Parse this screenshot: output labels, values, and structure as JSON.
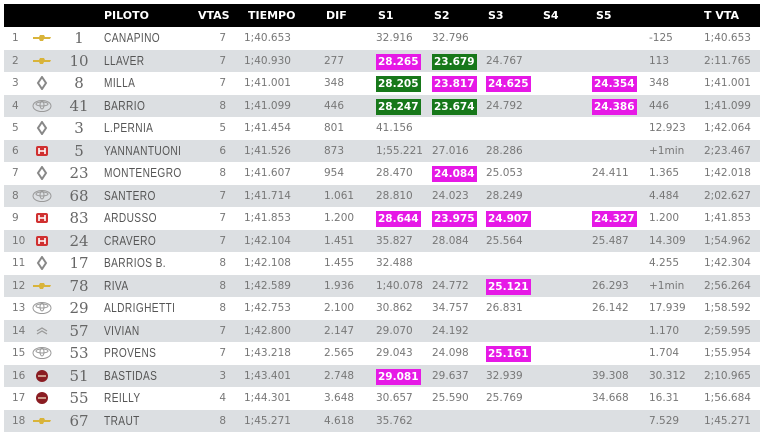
{
  "headers": {
    "piloto": "PILOTO",
    "vtas": "VTAS",
    "tiempo": "TIEMPO",
    "dif": "DIF",
    "s1": "S1",
    "s2": "S2",
    "s3": "S3",
    "s4": "S4",
    "s5": "S5",
    "tvta": "T VTA"
  },
  "colors": {
    "best_personal": "#e619e6",
    "best_overall": "#17781a",
    "row_alt": "#dcdfe2"
  },
  "rows": [
    {
      "pos": "1",
      "brand": "chevrolet",
      "num": "1",
      "name": "CANAPINO",
      "vtas": "7",
      "tiempo": "1;40.653",
      "dif": "",
      "s1": "32.916",
      "s2": "32.796",
      "s3": "",
      "s4": "",
      "s5": "",
      "gap": "-125",
      "tvta": "1;40.653",
      "hl": {}
    },
    {
      "pos": "2",
      "brand": "chevrolet",
      "num": "10",
      "name": "LLAVER",
      "vtas": "7",
      "tiempo": "1;40.930",
      "dif": "277",
      "s1": "28.265",
      "s2": "23.679",
      "s3": "24.767",
      "s4": "",
      "s5": "",
      "gap": "113",
      "tvta": "2:11.765",
      "hl": {
        "s1": "m",
        "s2": "g"
      }
    },
    {
      "pos": "3",
      "brand": "renault",
      "num": "8",
      "name": "MILLA",
      "vtas": "7",
      "tiempo": "1;41.001",
      "dif": "348",
      "s1": "28.205",
      "s2": "23.817",
      "s3": "24.625",
      "s4": "",
      "s5": "24.354",
      "gap": "348",
      "tvta": "1;41.001",
      "hl": {
        "s1": "g",
        "s2": "m",
        "s3": "m",
        "s5": "m"
      }
    },
    {
      "pos": "4",
      "brand": "toyota",
      "num": "41",
      "name": "BARRIO",
      "vtas": "8",
      "tiempo": "1;41.099",
      "dif": "446",
      "s1": "28.247",
      "s2": "23.674",
      "s3": "24.792",
      "s4": "",
      "s5": "24.386",
      "gap": "446",
      "tvta": "1;41.099",
      "hl": {
        "s1": "g",
        "s2": "g",
        "s5": "m"
      }
    },
    {
      "pos": "5",
      "brand": "renault",
      "num": "3",
      "name": "L.PERNIA",
      "vtas": "5",
      "tiempo": "1;41.454",
      "dif": "801",
      "s1": "41.156",
      "s2": "",
      "s3": "",
      "s4": "",
      "s5": "",
      "gap": "12.923",
      "tvta": "1;42.064",
      "hl": {}
    },
    {
      "pos": "6",
      "brand": "honda",
      "num": "5",
      "name": "YANNANTUONI",
      "vtas": "6",
      "tiempo": "1;41.526",
      "dif": "873",
      "s1": "1;55.221",
      "s2": "27.016",
      "s3": "28.286",
      "s4": "",
      "s5": "",
      "gap": "+1min",
      "tvta": "2;23.467",
      "hl": {}
    },
    {
      "pos": "7",
      "brand": "renault",
      "num": "23",
      "name": "MONTENEGRO",
      "vtas": "8",
      "tiempo": "1;41.607",
      "dif": "954",
      "s1": "28.470",
      "s2": "24.084",
      "s3": "25.053",
      "s4": "",
      "s5": "24.411",
      "gap": "1.365",
      "tvta": "1;42.018",
      "hl": {
        "s2": "m"
      }
    },
    {
      "pos": "8",
      "brand": "toyota",
      "num": "68",
      "name": "SANTERO",
      "vtas": "7",
      "tiempo": "1;41.714",
      "dif": "1.061",
      "s1": "28.810",
      "s2": "24.023",
      "s3": "28.249",
      "s4": "",
      "s5": "",
      "gap": "4.484",
      "tvta": "2;02.627",
      "hl": {}
    },
    {
      "pos": "9",
      "brand": "honda",
      "num": "83",
      "name": "ARDUSSO",
      "vtas": "7",
      "tiempo": "1;41.853",
      "dif": "1.200",
      "s1": "28.644",
      "s2": "23.975",
      "s3": "24.907",
      "s4": "",
      "s5": "24.327",
      "gap": "1.200",
      "tvta": "1;41.853",
      "hl": {
        "s1": "m",
        "s2": "m",
        "s3": "m",
        "s5": "m"
      }
    },
    {
      "pos": "10",
      "brand": "honda",
      "num": "24",
      "name": "CRAVERO",
      "vtas": "7",
      "tiempo": "1;42.104",
      "dif": "1.451",
      "s1": "35.827",
      "s2": "28.084",
      "s3": "25.564",
      "s4": "",
      "s5": "25.487",
      "gap": "14.309",
      "tvta": "1;54.962",
      "hl": {}
    },
    {
      "pos": "11",
      "brand": "renault",
      "num": "17",
      "name": "BARRIOS B.",
      "vtas": "8",
      "tiempo": "1;42.108",
      "dif": "1.455",
      "s1": "32.488",
      "s2": "",
      "s3": "",
      "s4": "",
      "s5": "",
      "gap": "4.255",
      "tvta": "1;42.304",
      "hl": {}
    },
    {
      "pos": "12",
      "brand": "chevrolet",
      "num": "78",
      "name": "RIVA",
      "vtas": "8",
      "tiempo": "1;42.589",
      "dif": "1.936",
      "s1": "1;40.078",
      "s2": "24.772",
      "s3": "25.121",
      "s4": "",
      "s5": "26.293",
      "gap": "+1min",
      "tvta": "2;56.264",
      "hl": {
        "s3": "m"
      }
    },
    {
      "pos": "13",
      "brand": "toyota",
      "num": "29",
      "name": "ALDRIGHETTI",
      "vtas": "8",
      "tiempo": "1;42.753",
      "dif": "2.100",
      "s1": "30.862",
      "s2": "34.757",
      "s3": "26.831",
      "s4": "",
      "s5": "26.142",
      "gap": "17.939",
      "tvta": "1;58.592",
      "hl": {}
    },
    {
      "pos": "14",
      "brand": "citroen",
      "num": "57",
      "name": "VIVIAN",
      "vtas": "7",
      "tiempo": "1;42.800",
      "dif": "2.147",
      "s1": "29.070",
      "s2": "24.192",
      "s3": "",
      "s4": "",
      "s5": "",
      "gap": "1.170",
      "tvta": "2;59.595",
      "hl": {}
    },
    {
      "pos": "15",
      "brand": "toyota",
      "num": "53",
      "name": "PROVENS",
      "vtas": "7",
      "tiempo": "1;43.218",
      "dif": "2.565",
      "s1": "29.043",
      "s2": "24.098",
      "s3": "25.161",
      "s4": "",
      "s5": "",
      "gap": "1.704",
      "tvta": "1;55.954",
      "hl": {
        "s3": "m"
      }
    },
    {
      "pos": "16",
      "brand": "fiat",
      "num": "51",
      "name": "BASTIDAS",
      "vtas": "3",
      "tiempo": "1;43.401",
      "dif": "2.748",
      "s1": "29.081",
      "s2": "29.637",
      "s3": "32.939",
      "s4": "",
      "s5": "39.308",
      "gap": "30.312",
      "tvta": "2;10.965",
      "hl": {
        "s1": "m"
      }
    },
    {
      "pos": "17",
      "brand": "fiat",
      "num": "55",
      "name": "REILLY",
      "vtas": "4",
      "tiempo": "1;44.301",
      "dif": "3.648",
      "s1": "30.657",
      "s2": "25.590",
      "s3": "25.769",
      "s4": "",
      "s5": "34.668",
      "gap": "16.31",
      "tvta": "1;56.684",
      "hl": {}
    },
    {
      "pos": "18",
      "brand": "chevrolet",
      "num": "67",
      "name": "TRAUT",
      "vtas": "8",
      "tiempo": "1;45.271",
      "dif": "4.618",
      "s1": "35.762",
      "s2": "",
      "s3": "",
      "s4": "",
      "s5": "",
      "gap": "7.529",
      "tvta": "1;45.271",
      "hl": {}
    }
  ]
}
